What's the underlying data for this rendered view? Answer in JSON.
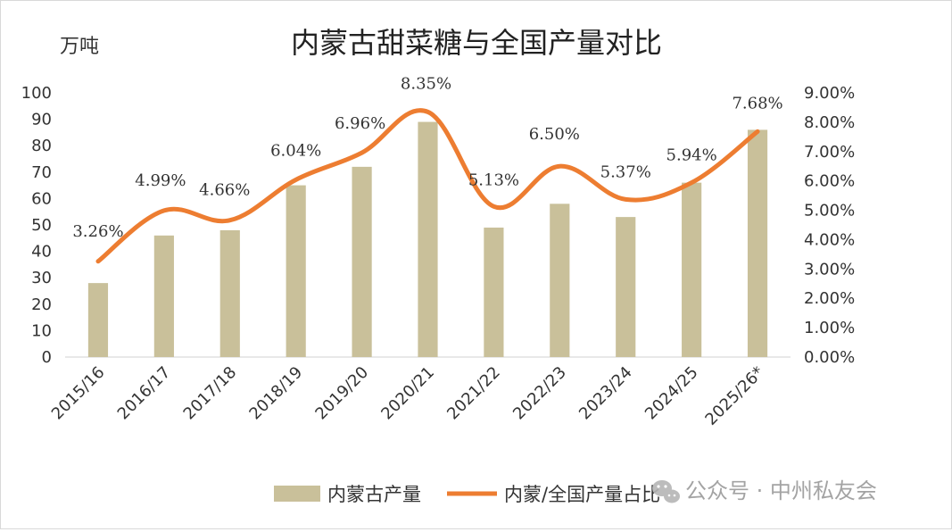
{
  "chart_data": {
    "type": "bar",
    "title": "内蒙古甜菜糖与全国产量对比",
    "ylabel": "万吨",
    "categories": [
      "2015/16",
      "2016/17",
      "2017/18",
      "2018/19",
      "2019/20",
      "2020/21",
      "2021/22",
      "2022/23",
      "2023/24",
      "2024/25",
      "2025/26*"
    ],
    "series": [
      {
        "name": "内蒙古产量",
        "type": "bar",
        "axis": "left",
        "color": "#c9c09a",
        "values": [
          28,
          46,
          48,
          65,
          72,
          89,
          49,
          58,
          53,
          66,
          86
        ]
      },
      {
        "name": "内蒙/全国产量占比",
        "type": "line",
        "axis": "right",
        "color": "#ed7d31",
        "values": [
          3.26,
          4.99,
          4.66,
          6.04,
          6.96,
          8.35,
          5.13,
          6.5,
          5.37,
          5.94,
          7.68
        ],
        "labels": [
          "3.26%",
          "4.99%",
          "4.66%",
          "6.04%",
          "6.96%",
          "8.35%",
          "5.13%",
          "6.50%",
          "5.37%",
          "5.94%",
          "7.68%"
        ]
      }
    ],
    "ylim": [
      0,
      100
    ],
    "y_ticks": [
      "100",
      "90",
      "80",
      "70",
      "60",
      "50",
      "40",
      "30",
      "20",
      "10",
      "0"
    ],
    "y2lim": [
      0,
      9
    ],
    "y2_ticks": [
      "9.00%",
      "8.00%",
      "7.00%",
      "6.00%",
      "5.00%",
      "4.00%",
      "3.00%",
      "2.00%",
      "1.00%",
      "0.00%"
    ],
    "legend": "bottom",
    "grid": false
  },
  "watermark": "公众号 · 中州私友会"
}
